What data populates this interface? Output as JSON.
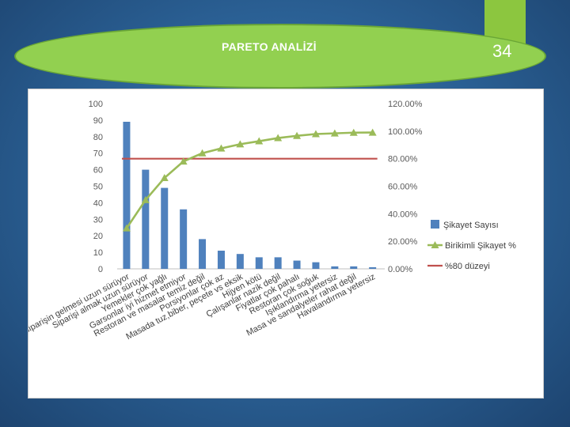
{
  "slide": {
    "title": "PARETO ANALİZİ",
    "number": "34"
  },
  "colors": {
    "background": "#2a5f93",
    "accent": "#8cc63f",
    "bar": "#4f81bd",
    "cumulative_line": "#9bbb59",
    "threshold_line": "#c0504d"
  },
  "chart_data": {
    "type": "bar",
    "categories": [
      "Siparişin gelmesi uzun sürüyor",
      "Siparişi almak uzun sürüyor",
      "Yemekler çok yağlı",
      "Garsonlar iyi hizmet etmiyor",
      "Restoran ve masalar temiz değil",
      "Porsiyonlar çok az",
      "Masada tuz,biber, peçete vs eksik",
      "Hijyen kötü",
      "Çalışanlar nazik değil",
      "Fiyatlar çok pahalı",
      "Restoran çok soğuk",
      "Işıklandırma yetersiz",
      "Masa ve sandalyeler rahat değil",
      "Havalandırma yetersiz"
    ],
    "series": [
      {
        "name": "Şikayet Sayısı",
        "axis": "left",
        "kind": "bar",
        "values": [
          89,
          60,
          49,
          36,
          18,
          11,
          9,
          7,
          7,
          5,
          4,
          1.5,
          1.5,
          1
        ]
      },
      {
        "name": "Birikimli Şikayet %",
        "axis": "right",
        "kind": "line-marker",
        "values": [
          0.295,
          0.5,
          0.66,
          0.78,
          0.84,
          0.875,
          0.905,
          0.927,
          0.95,
          0.966,
          0.979,
          0.984,
          0.989,
          0.99
        ]
      },
      {
        "name": "%80 düzeyi",
        "axis": "right",
        "kind": "line",
        "values": [
          0.8,
          0.8,
          0.8,
          0.8,
          0.8,
          0.8,
          0.8,
          0.8,
          0.8,
          0.8,
          0.8,
          0.8,
          0.8,
          0.8
        ]
      }
    ],
    "y_left": {
      "ylim": [
        0,
        100
      ],
      "ticks": [
        "0",
        "10",
        "20",
        "30",
        "40",
        "50",
        "60",
        "70",
        "80",
        "90",
        "100"
      ]
    },
    "y_right": {
      "ylim": [
        0,
        1.2
      ],
      "ticks": [
        "0.00%",
        "20.00%",
        "40.00%",
        "60.00%",
        "80.00%",
        "100.00%",
        "120.00%"
      ]
    },
    "grid": false,
    "legend_position": "right"
  }
}
